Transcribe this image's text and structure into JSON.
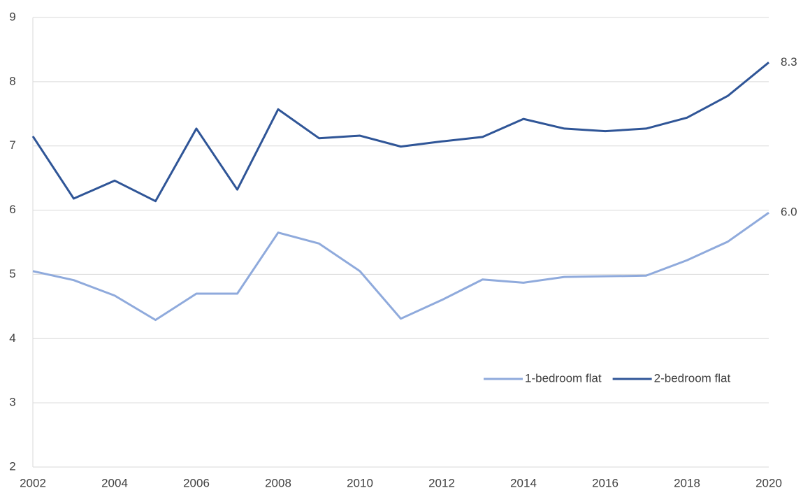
{
  "chart_data": {
    "type": "line",
    "x": [
      2002,
      2003,
      2004,
      2005,
      2006,
      2007,
      2008,
      2009,
      2010,
      2011,
      2012,
      2013,
      2014,
      2015,
      2016,
      2017,
      2018,
      2019,
      2020
    ],
    "series": [
      {
        "name": "1-bedroom flat",
        "color": "#8faadc",
        "values": [
          5.05,
          4.91,
          4.67,
          4.29,
          4.7,
          4.7,
          5.65,
          5.48,
          5.05,
          4.31,
          4.6,
          4.92,
          4.87,
          4.96,
          4.97,
          4.98,
          5.22,
          5.51,
          5.96
        ],
        "value_labels": [
          null,
          null,
          null,
          null,
          null,
          null,
          null,
          null,
          null,
          null,
          null,
          null,
          null,
          null,
          null,
          null,
          null,
          null,
          "6.0"
        ]
      },
      {
        "name": "2-bedroom flat",
        "color": "#2f5597",
        "values": [
          7.15,
          6.18,
          6.46,
          6.14,
          7.27,
          6.32,
          7.57,
          7.12,
          7.16,
          6.99,
          7.07,
          7.14,
          7.42,
          7.27,
          7.23,
          7.27,
          7.44,
          7.78,
          8.3
        ],
        "value_labels": [
          null,
          null,
          null,
          null,
          null,
          null,
          null,
          null,
          null,
          null,
          null,
          null,
          null,
          null,
          null,
          null,
          null,
          null,
          "8.3"
        ]
      }
    ],
    "xlim": [
      2002,
      2020
    ],
    "xticks": [
      2002,
      2004,
      2006,
      2008,
      2010,
      2012,
      2014,
      2016,
      2018,
      2020
    ],
    "ylim": [
      2,
      9
    ],
    "yticks": [
      2,
      3,
      4,
      5,
      6,
      7,
      8,
      9
    ],
    "grid": true,
    "legend": "right"
  }
}
